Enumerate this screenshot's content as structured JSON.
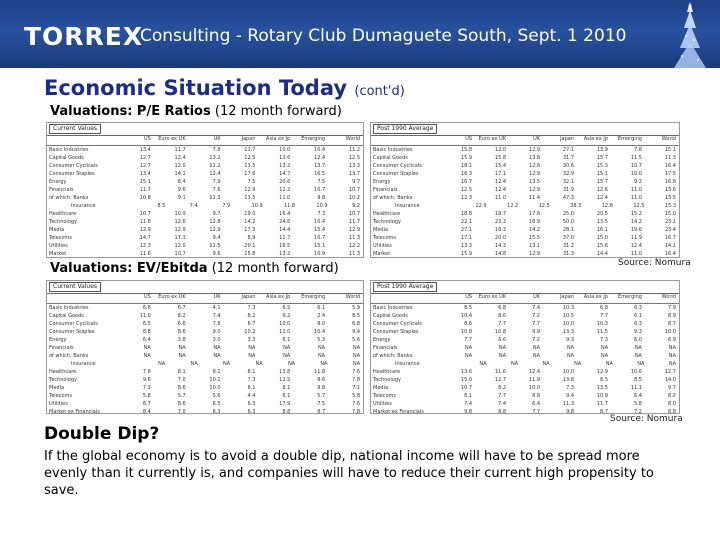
{
  "header": {
    "brand": "TORREX",
    "title": "Consulting - Rotary Club Dumaguete South, Sept. 1 2010"
  },
  "slide": {
    "title": "Economic Situation Today",
    "title_suffix": "(cont'd)"
  },
  "pe": {
    "label_bold": "Valuations: P/E Ratios",
    "label_rest": " (12 month forward)",
    "source": "Source: Nomura",
    "left_table": {
      "caption": "Current Values",
      "columns": [
        "",
        "US",
        "Euro ex UK",
        "UK",
        "Japan",
        "Asia ex Jp",
        "Emerging",
        "World"
      ],
      "rows": [
        [
          "Basic Industries",
          "13.4",
          "11.7",
          "7.8",
          "11.7",
          "10.0",
          "10.4",
          "11.2"
        ],
        [
          "Capital Goods",
          "12.7",
          "12.4",
          "13.2",
          "12.5",
          "13.6",
          "12.4",
          "12.5"
        ],
        [
          "Consumer Cyclicals",
          "12.7",
          "12.0",
          "11.2",
          "13.5",
          "13.2",
          "13.7",
          "13.3"
        ],
        [
          "Consumer Staples",
          "13.4",
          "14.1",
          "12.4",
          "17.6",
          "14.7",
          "16.5",
          "13.7"
        ],
        [
          "Energy",
          "15.1",
          "8.4",
          "7.9",
          "7.5",
          "20.6",
          "7.5",
          "9.7"
        ],
        [
          "Financials",
          "11.7",
          "9.6",
          "7.6",
          "12.9",
          "12.2",
          "10.7",
          "10.7"
        ],
        [
          "of which: Banks",
          "10.8",
          "9.1",
          "11.3",
          "13.5",
          "11.0",
          "9.8",
          "10.2"
        ],
        [
          "Insurance",
          "8.5",
          "7.4",
          "7.9",
          "10.9",
          "11.8",
          "10.9",
          "9.2"
        ],
        [
          "Healthcare",
          "10.7",
          "10.9",
          "9.7",
          "19.0",
          "16.4",
          "7.3",
          "10.7"
        ],
        [
          "Technology",
          "11.8",
          "12.6",
          "12.8",
          "14.2",
          "24.6",
          "10.4",
          "11.7"
        ],
        [
          "Media",
          "12.9",
          "12.9",
          "12.9",
          "17.3",
          "14.4",
          "15.4",
          "12.9"
        ],
        [
          "Telecoms",
          "14.7",
          "17.3",
          "9.4",
          "8.9",
          "11.7",
          "10.7",
          "11.3"
        ],
        [
          "Utilities",
          "12.3",
          "12.0",
          "11.5",
          "20.1",
          "16.5",
          "15.1",
          "12.2"
        ],
        [
          "Market",
          "11.6",
          "10.7",
          "9.6",
          "15.8",
          "13.2",
          "10.9",
          "11.3"
        ]
      ]
    },
    "right_table": {
      "caption": "Post 1990 Average",
      "columns": [
        "",
        "US",
        "Euro ex UK",
        "UK",
        "Japan",
        "Asia ex Jp",
        "Emerging",
        "World"
      ],
      "rows": [
        [
          "Basic Industries",
          "15.8",
          "12.0",
          "12.9",
          "27.1",
          "13.9",
          "7.8",
          "15.1"
        ],
        [
          "Capital Goods",
          "15.9",
          "15.8",
          "13.8",
          "31.7",
          "15.7",
          "11.5",
          "11.3"
        ],
        [
          "Consumer Cyclicals",
          "18.1",
          "15.4",
          "12.6",
          "30.6",
          "15.3",
          "10.7",
          "16.4"
        ],
        [
          "Consumer Staples",
          "16.3",
          "17.1",
          "12.9",
          "32.9",
          "15.1",
          "10.0",
          "17.5"
        ],
        [
          "Energy",
          "16.7",
          "12.4",
          "13.5",
          "32.1",
          "15.7",
          "9.2",
          "16.8"
        ],
        [
          "Financials",
          "12.5",
          "12.4",
          "12.9",
          "31.9",
          "12.6",
          "11.0",
          "13.6"
        ],
        [
          "of which: Banks",
          "12.3",
          "11.0",
          "11.4",
          "47.3",
          "12.4",
          "11.0",
          "13.5"
        ],
        [
          "Insurance",
          "12.9",
          "12.2",
          "12.5",
          "38.3",
          "12.8",
          "12.5",
          "15.3"
        ],
        [
          "Healthcare",
          "18.8",
          "18.7",
          "17.6",
          "25.0",
          "20.5",
          "15.2",
          "15.0"
        ],
        [
          "Technology",
          "22.1",
          "23.3",
          "18.9",
          "50.0",
          "13.5",
          "14.2",
          "23.1"
        ],
        [
          "Media",
          "27.1",
          "18.3",
          "14.2",
          "28.1",
          "16.1",
          "19.6",
          "23.4"
        ],
        [
          "Telecoms",
          "17.1",
          "20.0",
          "15.5",
          "37.0",
          "15.0",
          "11.9",
          "16.7"
        ],
        [
          "Utilities",
          "13.3",
          "14.3",
          "13.1",
          "31.2",
          "15.6",
          "12.4",
          "14.1"
        ],
        [
          "Market",
          "15.9",
          "14.8",
          "12.9",
          "31.3",
          "14.4",
          "11.0",
          "16.4"
        ]
      ]
    }
  },
  "ev": {
    "label_bold": "Valuations: EV/Ebitda",
    "label_rest": " (12 month forward)",
    "source": "Source: Nomura",
    "left_table": {
      "caption": "Current Values",
      "columns": [
        "",
        "US",
        "Euro ex UK",
        "UK",
        "Japan",
        "Asia ex Jp",
        "Emerging",
        "World"
      ],
      "rows": [
        [
          "Basic Industries",
          "6.6",
          "6.7",
          "4.1",
          "7.3",
          "6.5",
          "6.1",
          "5.9"
        ],
        [
          "Capital Goods",
          "11.0",
          "8.2",
          "7.4",
          "8.2",
          "9.2",
          "2.4",
          "8.5"
        ],
        [
          "Consumer Cyclicals",
          "6.5",
          "6.6",
          "7.8",
          "6.7",
          "10.0",
          "8.0",
          "6.8"
        ],
        [
          "Consumer Staples",
          "8.8",
          "8.6",
          "9.0",
          "10.2",
          "11.0",
          "10.4",
          "9.4"
        ],
        [
          "Energy",
          "6.4",
          "3.8",
          "3.0",
          "3.3",
          "6.1",
          "5.3",
          "5.6"
        ],
        [
          "Financials",
          "NA",
          "NA",
          "NA",
          "NA",
          "NA",
          "NA",
          "NA"
        ],
        [
          "of which: Banks",
          "NA",
          "NA",
          "NA",
          "NA",
          "NA",
          "NA",
          "NA"
        ],
        [
          "Insurance",
          "NA",
          "NA",
          "NA",
          "NA",
          "NA",
          "NA",
          "NA"
        ],
        [
          "Healthcare",
          "7.8",
          "8.1",
          "8.2",
          "8.1",
          "13.8",
          "11.8",
          "7.6"
        ],
        [
          "Technology",
          "9.6",
          "7.0",
          "10.2",
          "7.3",
          "12.5",
          "8.6",
          "7.8"
        ],
        [
          "Media",
          "7.3",
          "8.6",
          "10.0",
          "6.1",
          "8.1",
          "9.8",
          "7.1"
        ],
        [
          "Telecoms",
          "5.8",
          "5.7",
          "5.6",
          "4.4",
          "6.1",
          "5.7",
          "5.8"
        ],
        [
          "Utilities",
          "6.7",
          "8.6",
          "6.5",
          "6.3",
          "17.9",
          "7.5",
          "7.6"
        ],
        [
          "Market ex Financials",
          "8.4",
          "7.0",
          "6.3",
          "6.3",
          "8.8",
          "8.7",
          "7.8"
        ]
      ]
    },
    "right_table": {
      "caption": "Post 1990 Average",
      "columns": [
        "",
        "US",
        "Euro ex UK",
        "UK",
        "Japan",
        "Asia ex Jp",
        "Emerging",
        "World"
      ],
      "rows": [
        [
          "Basic Industries",
          "8.5",
          "6.8",
          "7.4",
          "10.3",
          "6.8",
          "6.3",
          "7.9"
        ],
        [
          "Capital Goods",
          "10.4",
          "8.6",
          "7.2",
          "10.5",
          "7.7",
          "6.1",
          "8.9"
        ],
        [
          "Consumer Cyclicals",
          "8.6",
          "7.7",
          "7.7",
          "10.0",
          "10.3",
          "6.3",
          "8.7"
        ],
        [
          "Consumer Staples",
          "10.8",
          "10.8",
          "9.9",
          "13.3",
          "11.5",
          "9.3",
          "10.0"
        ],
        [
          "Energy",
          "7.7",
          "6.6",
          "7.2",
          "9.3",
          "7.3",
          "6.0",
          "6.9"
        ],
        [
          "Financials",
          "NA",
          "NA",
          "NA",
          "NA",
          "NA",
          "NA",
          "NA"
        ],
        [
          "of which: Banks",
          "NA",
          "NA",
          "NA",
          "NA",
          "NA",
          "NA",
          "NA"
        ],
        [
          "Insurance",
          "NA",
          "NA",
          "NA",
          "NA",
          "NA",
          "NA",
          "NA"
        ],
        [
          "Healthcare",
          "13.6",
          "11.6",
          "12.4",
          "10.0",
          "12.9",
          "10.6",
          "12.7"
        ],
        [
          "Technology",
          "15.0",
          "12.7",
          "11.9",
          "13.8",
          "8.5",
          "8.5",
          "14.0"
        ],
        [
          "Media",
          "10.7",
          "8.2",
          "10.0",
          "7.3",
          "13.5",
          "11.1",
          "9.7"
        ],
        [
          "Telecoms",
          "8.1",
          "7.7",
          "8.8",
          "9.4",
          "10.9",
          "6.4",
          "8.2"
        ],
        [
          "Utilities",
          "7.4",
          "7.4",
          "6.4",
          "11.3",
          "11.7",
          "5.8",
          "8.0"
        ],
        [
          "Market ex Financials",
          "9.8",
          "8.8",
          "7.7",
          "9.8",
          "8.7",
          "7.2",
          "8.8"
        ]
      ]
    }
  },
  "double_dip": {
    "heading": "Double Dip?",
    "body": "If the global economy is to avoid a double dip, national income will have to be spread more evenly than it currently is, and companies will have to reduce their current high propensity to save."
  },
  "colors": {
    "header_blue": "#1f4590",
    "title_blue": "#1a2d8c"
  }
}
